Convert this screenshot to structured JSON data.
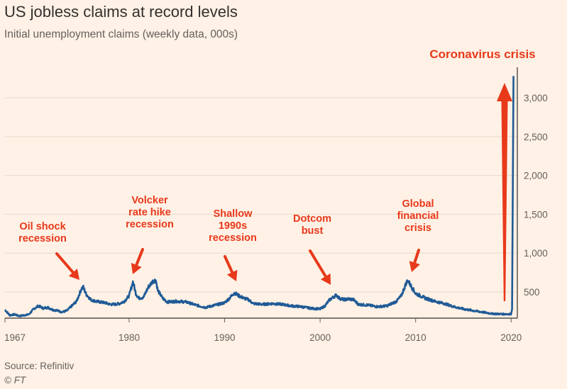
{
  "header": {
    "title": "US jobless claims at record levels",
    "subtitle": "Initial unemployment claims (weekly data, 000s)"
  },
  "footer": {
    "source": "Source: Refinitiv",
    "brand": "© FT"
  },
  "chart_data": {
    "type": "line",
    "title": "US jobless claims at record levels",
    "subtitle": "Initial unemployment claims (weekly data, 000s)",
    "xlabel": "",
    "ylabel": "",
    "xlim": [
      1967,
      2020.5
    ],
    "ylim": [
      120,
      3300
    ],
    "x_ticks": [
      {
        "value": 1967,
        "label": "1967"
      },
      {
        "value": 1980,
        "label": "1980"
      },
      {
        "value": 1990,
        "label": "1990"
      },
      {
        "value": 2000,
        "label": "2000"
      },
      {
        "value": 2010,
        "label": "2010"
      },
      {
        "value": 2020,
        "label": "2020"
      }
    ],
    "y_ticks": [
      {
        "value": 500,
        "label": "500"
      },
      {
        "value": 1000,
        "label": "1,000"
      },
      {
        "value": 1500,
        "label": "1,500"
      },
      {
        "value": 2000,
        "label": "2,000"
      },
      {
        "value": 2500,
        "label": "2,500"
      },
      {
        "value": 3000,
        "label": "3,000"
      }
    ],
    "y_axis_side": "right",
    "grid": "horizontal",
    "series": [
      {
        "color": "#1f5a96",
        "points": [
          [
            1967.0,
            270
          ],
          [
            1967.5,
            200
          ],
          [
            1968.0,
            210
          ],
          [
            1968.5,
            190
          ],
          [
            1969.0,
            200
          ],
          [
            1969.5,
            210
          ],
          [
            1970.0,
            280
          ],
          [
            1970.5,
            320
          ],
          [
            1971.0,
            290
          ],
          [
            1971.5,
            300
          ],
          [
            1972.0,
            270
          ],
          [
            1972.5,
            260
          ],
          [
            1973.0,
            240
          ],
          [
            1973.5,
            260
          ],
          [
            1974.0,
            320
          ],
          [
            1974.5,
            380
          ],
          [
            1975.0,
            540
          ],
          [
            1975.2,
            560
          ],
          [
            1975.5,
            470
          ],
          [
            1976.0,
            400
          ],
          [
            1976.5,
            380
          ],
          [
            1977.0,
            370
          ],
          [
            1977.5,
            360
          ],
          [
            1978.0,
            340
          ],
          [
            1978.5,
            340
          ],
          [
            1979.0,
            350
          ],
          [
            1979.5,
            380
          ],
          [
            1980.0,
            450
          ],
          [
            1980.4,
            630
          ],
          [
            1980.7,
            480
          ],
          [
            1981.0,
            420
          ],
          [
            1981.5,
            430
          ],
          [
            1982.0,
            560
          ],
          [
            1982.5,
            640
          ],
          [
            1982.8,
            650
          ],
          [
            1983.0,
            520
          ],
          [
            1983.5,
            420
          ],
          [
            1984.0,
            370
          ],
          [
            1985.0,
            380
          ],
          [
            1986.0,
            370
          ],
          [
            1987.0,
            330
          ],
          [
            1988.0,
            300
          ],
          [
            1989.0,
            330
          ],
          [
            1990.0,
            360
          ],
          [
            1990.6,
            430
          ],
          [
            1991.0,
            490
          ],
          [
            1991.5,
            450
          ],
          [
            1992.0,
            420
          ],
          [
            1992.5,
            400
          ],
          [
            1993.0,
            350
          ],
          [
            1994.0,
            340
          ],
          [
            1995.0,
            350
          ],
          [
            1996.0,
            340
          ],
          [
            1997.0,
            320
          ],
          [
            1998.0,
            310
          ],
          [
            1999.0,
            290
          ],
          [
            2000.0,
            280
          ],
          [
            2000.5,
            320
          ],
          [
            2001.0,
            400
          ],
          [
            2001.7,
            460
          ],
          [
            2002.0,
            420
          ],
          [
            2002.5,
            400
          ],
          [
            2003.0,
            410
          ],
          [
            2003.5,
            400
          ],
          [
            2004.0,
            340
          ],
          [
            2005.0,
            330
          ],
          [
            2006.0,
            310
          ],
          [
            2007.0,
            320
          ],
          [
            2008.0,
            380
          ],
          [
            2008.5,
            450
          ],
          [
            2009.0,
            610
          ],
          [
            2009.2,
            650
          ],
          [
            2009.5,
            580
          ],
          [
            2010.0,
            480
          ],
          [
            2011.0,
            420
          ],
          [
            2012.0,
            380
          ],
          [
            2013.0,
            350
          ],
          [
            2014.0,
            310
          ],
          [
            2015.0,
            280
          ],
          [
            2016.0,
            260
          ],
          [
            2017.0,
            240
          ],
          [
            2018.0,
            220
          ],
          [
            2019.0,
            215
          ],
          [
            2020.0,
            215
          ],
          [
            2020.1,
            280
          ],
          [
            2020.25,
            3280
          ]
        ]
      }
    ],
    "annotations": [
      {
        "lines": [
          "Oil shock",
          "recession"
        ],
        "target": [
          1975.2,
          560
        ]
      },
      {
        "lines": [
          "Volcker",
          "rate hike",
          "recession"
        ],
        "target": [
          1980.4,
          630
        ]
      },
      {
        "lines": [
          "Shallow",
          "1990s",
          "recession"
        ],
        "target": [
          1991.0,
          490
        ]
      },
      {
        "lines": [
          "Dotcom",
          "bust"
        ],
        "target": [
          2001.0,
          400
        ]
      },
      {
        "lines": [
          "Global",
          "financial",
          "crisis"
        ],
        "target": [
          2009.2,
          650
        ]
      },
      {
        "lines": [
          "Coronavirus crisis"
        ],
        "target": [
          2020.25,
          3280
        ]
      }
    ]
  }
}
